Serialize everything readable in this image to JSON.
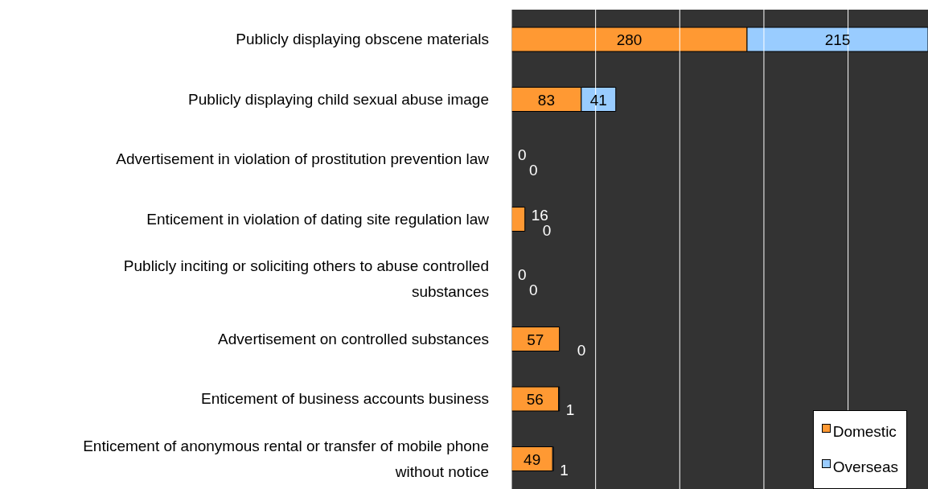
{
  "chart_data": {
    "type": "bar",
    "orientation": "horizontal",
    "stacked": true,
    "categories": [
      "Publicly displaying obscene materials",
      "Publicly displaying child sexual abuse image",
      "Advertisement in violation of prostitution prevention law",
      "Enticement in violation of dating site regulation law",
      "Publicly inciting or soliciting others to abuse controlled substances",
      "Advertisement on controlled substances",
      "Enticement of business accounts business",
      "Enticement of anonymous rental or transfer of mobile phone without notice"
    ],
    "series": [
      {
        "name": "Domestic",
        "color": "#ff9933",
        "values": [
          280,
          83,
          0,
          16,
          0,
          57,
          56,
          49
        ]
      },
      {
        "name": "Overseas",
        "color": "#99ccff",
        "values": [
          215,
          41,
          0,
          0,
          0,
          0,
          1,
          1
        ]
      }
    ],
    "xlim": [
      0,
      495
    ],
    "xticks": [
      {
        "value": 0,
        "label": null
      },
      {
        "value": 100,
        "label": null
      },
      {
        "value": 200,
        "label": null
      },
      {
        "value": 300,
        "label": null
      },
      {
        "value": 400,
        "label": null
      }
    ],
    "tick_labels": "y",
    "grid": "x",
    "data_labels": true,
    "legend": "bottom right"
  }
}
